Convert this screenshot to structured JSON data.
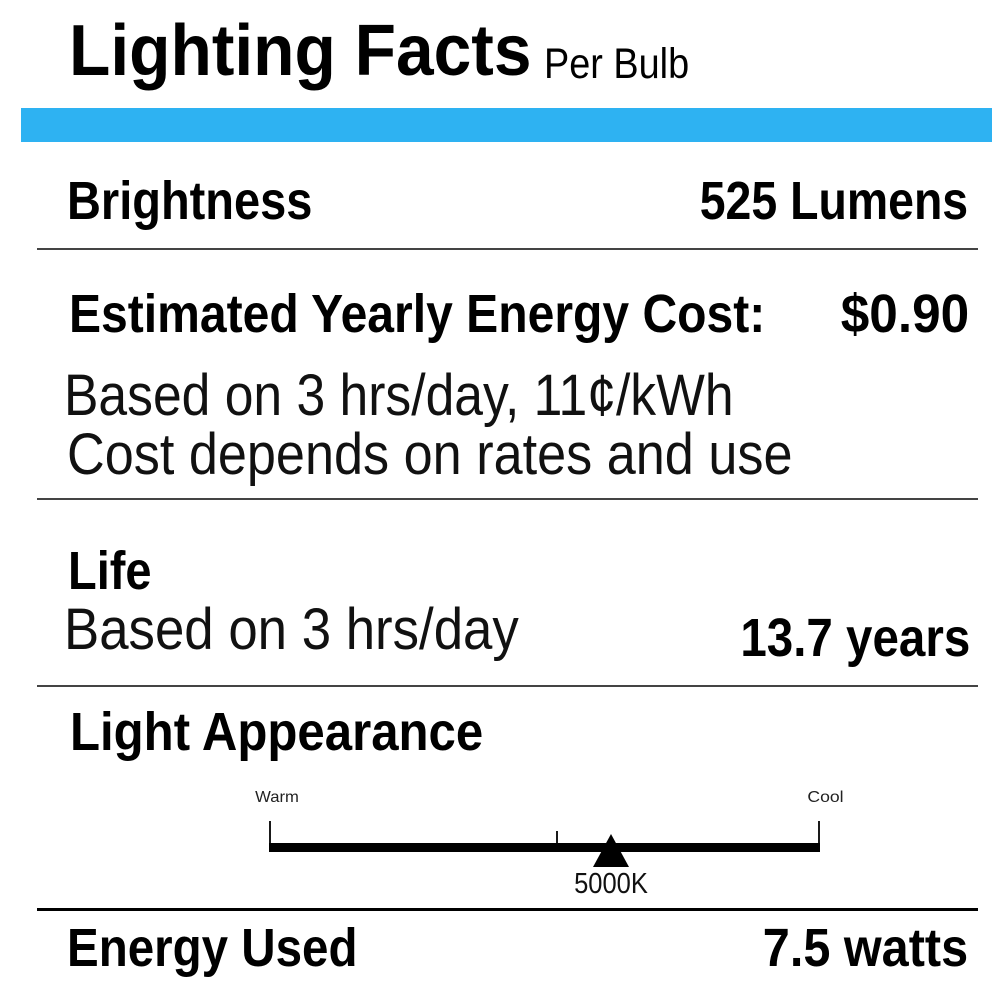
{
  "header": {
    "title": "Lighting Facts",
    "subtitle": "Per Bulb"
  },
  "colors": {
    "accent": "#2eb2f2"
  },
  "rows": {
    "brightness": {
      "label": "Brightness",
      "value": "525 Lumens"
    },
    "energy_cost": {
      "label": "Estimated Yearly Energy Cost:",
      "value": "$0.90",
      "note1": "Based on 3 hrs/day, 11¢/kWh",
      "note2": "Cost depends on rates and use"
    },
    "life": {
      "label": "Life",
      "note": "Based on 3 hrs/day",
      "value": "13.7 years"
    },
    "light_appearance": {
      "label": "Light Appearance",
      "scale": {
        "left_label": "Warm",
        "right_label": "Cool",
        "marker_label": "5000K",
        "marker_position_pct": 62
      }
    },
    "energy_used": {
      "label": "Energy Used",
      "value": "7.5 watts"
    }
  }
}
